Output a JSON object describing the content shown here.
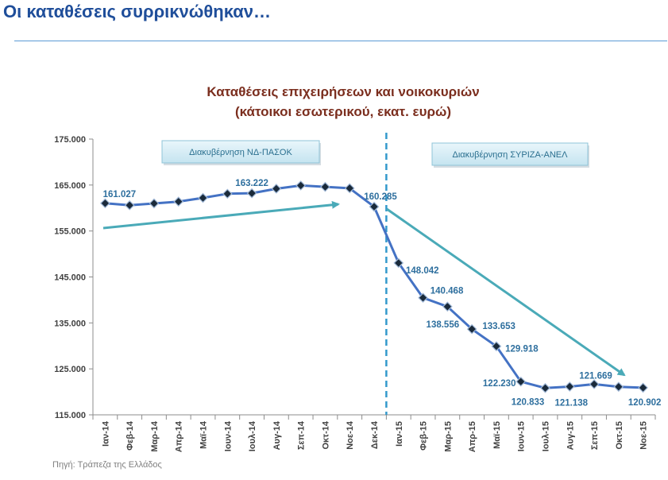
{
  "slide": {
    "title": "Οι καταθέσεις συρρικνώθηκαν…",
    "source": "Πηγή: Τράπεζα της Ελλάδος"
  },
  "chart_data": {
    "type": "line",
    "title_line1": "Καταθέσεις επιχειρήσεων και νοικοκυριών",
    "title_line2": "(κάτοικοι εσωτερικού, εκατ. ευρώ)",
    "categories": [
      "Ιαν-14",
      "Φεβ-14",
      "Μαρ-14",
      "Απρ-14",
      "Μαϊ-14",
      "Ιουν-14",
      "Ιουλ-14",
      "Αυγ-14",
      "Σεπ-14",
      "Οκτ-14",
      "Νοε-14",
      "Δεκ-14",
      "Ιαν-15",
      "Φεβ-15",
      "Μαρ-15",
      "Απρ-15",
      "Μαϊ-15",
      "Ιουν-15",
      "Ιουλ-15",
      "Αυγ-15",
      "Σεπ-15",
      "Οκτ-15",
      "Νοε-15"
    ],
    "values": [
      161027,
      160600,
      161000,
      161400,
      162200,
      163100,
      163222,
      164200,
      164900,
      164600,
      164300,
      160285,
      148042,
      140468,
      138556,
      133653,
      129918,
      122230,
      120833,
      121138,
      121669,
      121100,
      120902
    ],
    "data_labels": [
      {
        "index": 0,
        "text": "161.027"
      },
      {
        "index": 6,
        "text": "163.222"
      },
      {
        "index": 11,
        "text": "160.285"
      },
      {
        "index": 12,
        "text": "148.042"
      },
      {
        "index": 13,
        "text": "140.468"
      },
      {
        "index": 14,
        "text": "138.556"
      },
      {
        "index": 15,
        "text": "133.653"
      },
      {
        "index": 16,
        "text": "129.918"
      },
      {
        "index": 17,
        "text": "122.230"
      },
      {
        "index": 18,
        "text": "120.833"
      },
      {
        "index": 19,
        "text": "121.138"
      },
      {
        "index": 20,
        "text": "121.669"
      },
      {
        "index": 22,
        "text": "120.902"
      }
    ],
    "y_ticks": [
      {
        "value": 115000,
        "label": "115.000"
      },
      {
        "value": 125000,
        "label": "125.000"
      },
      {
        "value": 135000,
        "label": "135.000"
      },
      {
        "value": 145000,
        "label": "145.000"
      },
      {
        "value": 155000,
        "label": "155.000"
      },
      {
        "value": 165000,
        "label": "165.000"
      },
      {
        "value": 175000,
        "label": "175.000"
      }
    ],
    "ylim": [
      115000,
      175000
    ],
    "grid": false,
    "annotations": [
      {
        "name": "period-nd-pasok",
        "text": "Διακυβέρνηση ΝΔ-ΠΑΣΟΚ"
      },
      {
        "name": "period-syriza-anel",
        "text": "Διακυβέρνηση ΣΥΡΙΖΑ-ΑΝΕΛ"
      }
    ],
    "colors": {
      "line": "#4472c4",
      "marker": "#1a2a3a",
      "label": "#2e6f9e",
      "arrow": "#4aaab8",
      "divider": "#3399cc",
      "title": "#7b2e1e"
    }
  }
}
